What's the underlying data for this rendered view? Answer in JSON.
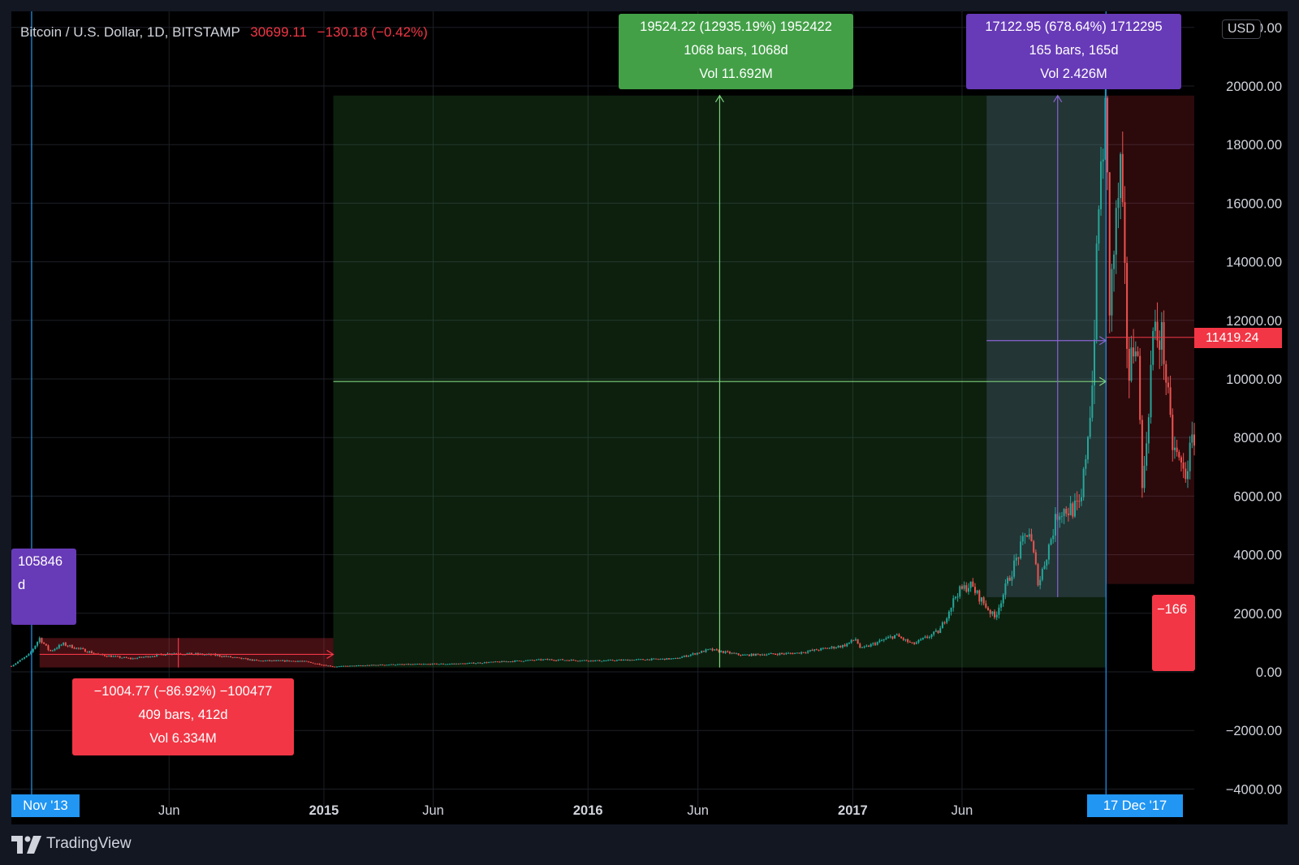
{
  "header": {
    "symbol": "Bitcoin / U.S. Dollar, 1D, BITSTAMP",
    "last_price": "30699.11",
    "change": "−130.18 (−0.42%)",
    "currency": "USD"
  },
  "colors": {
    "background": "#000000",
    "up": "#26a69a",
    "down": "#ef5350",
    "green_zone": "#43a047",
    "purple_zone": "#673ab7",
    "red_zone": "#f23645",
    "crosshair": "#2196f3"
  },
  "measurements": {
    "green": {
      "line1": "19524.22 (12935.19%) 1952422",
      "line2": "1068 bars, 1068d",
      "line3": "Vol 11.692M"
    },
    "purple": {
      "line1": "17122.95 (678.64%) 1712295",
      "line2": "165 bars, 165d",
      "line3": "Vol 2.426M"
    },
    "red_main": {
      "line1": "−1004.77 (−86.92%) −100477",
      "line2": "409 bars, 412d",
      "line3": "Vol 6.334M"
    },
    "purple_left": {
      "line1": "105846",
      "line2": "d"
    },
    "red_right": {
      "line1": "−166"
    }
  },
  "price_label": "11419.24",
  "crosshair_labels": {
    "left": "Nov '13",
    "right": "17 Dec '17"
  },
  "branding": {
    "name": "TradingView"
  },
  "chart_data": {
    "type": "candlestick",
    "title": "",
    "y_axis": {
      "ticks": [
        22000,
        20000,
        18000,
        16000,
        14000,
        12000,
        10000,
        8000,
        6000,
        4000,
        2000,
        0,
        -2000,
        -4000
      ],
      "tick_labels": [
        "22000.00",
        "20000.00",
        "18000.00",
        "16000.00",
        "14000.00",
        "12000.00",
        "10000.00",
        "8000.00",
        "6000.00",
        "4000.00",
        "2000.00",
        "0.00",
        "−2000.00",
        "−4000.00"
      ],
      "ylim": [
        -4000,
        22000
      ]
    },
    "x_axis": {
      "tick_labels": [
        {
          "label": "Jun",
          "date": "2014-06-01",
          "bold": false
        },
        {
          "label": "2015",
          "date": "2015-01-01",
          "bold": true
        },
        {
          "label": "Jun",
          "date": "2015-06-01",
          "bold": false
        },
        {
          "label": "2016",
          "date": "2016-01-01",
          "bold": true
        },
        {
          "label": "Jun",
          "date": "2016-06-01",
          "bold": false
        },
        {
          "label": "2017",
          "date": "2017-01-01",
          "bold": true
        },
        {
          "label": "Jun",
          "date": "2017-06-01",
          "bold": false
        }
      ],
      "xlim": [
        "2013-10-26",
        "2018-04-18"
      ]
    },
    "price_path": [
      {
        "date": "2013-10-26",
        "price": 200
      },
      {
        "date": "2013-11-20",
        "price": 600
      },
      {
        "date": "2013-12-04",
        "price": 1150
      },
      {
        "date": "2013-12-18",
        "price": 700
      },
      {
        "date": "2014-01-05",
        "price": 950
      },
      {
        "date": "2014-02-25",
        "price": 580
      },
      {
        "date": "2014-04-10",
        "price": 450
      },
      {
        "date": "2014-06-05",
        "price": 640
      },
      {
        "date": "2014-08-01",
        "price": 580
      },
      {
        "date": "2014-10-01",
        "price": 380
      },
      {
        "date": "2014-12-01",
        "price": 370
      },
      {
        "date": "2015-01-14",
        "price": 180
      },
      {
        "date": "2015-04-01",
        "price": 250
      },
      {
        "date": "2015-07-10",
        "price": 280
      },
      {
        "date": "2015-11-04",
        "price": 420
      },
      {
        "date": "2016-01-15",
        "price": 380
      },
      {
        "date": "2016-05-01",
        "price": 450
      },
      {
        "date": "2016-06-17",
        "price": 760
      },
      {
        "date": "2016-08-01",
        "price": 570
      },
      {
        "date": "2016-10-15",
        "price": 640
      },
      {
        "date": "2016-12-20",
        "price": 900
      },
      {
        "date": "2017-01-05",
        "price": 1120
      },
      {
        "date": "2017-01-12",
        "price": 780
      },
      {
        "date": "2017-03-01",
        "price": 1250
      },
      {
        "date": "2017-03-25",
        "price": 940
      },
      {
        "date": "2017-05-01",
        "price": 1400
      },
      {
        "date": "2017-05-25",
        "price": 2700
      },
      {
        "date": "2017-06-12",
        "price": 2980
      },
      {
        "date": "2017-07-16",
        "price": 1850
      },
      {
        "date": "2017-08-05",
        "price": 3200
      },
      {
        "date": "2017-09-01",
        "price": 4900
      },
      {
        "date": "2017-09-15",
        "price": 3000
      },
      {
        "date": "2017-10-12",
        "price": 5500
      },
      {
        "date": "2017-11-12",
        "price": 5600
      },
      {
        "date": "2017-11-28",
        "price": 9800
      },
      {
        "date": "2017-12-08",
        "price": 16500
      },
      {
        "date": "2017-12-17",
        "price": 19200
      },
      {
        "date": "2017-12-22",
        "price": 12500
      },
      {
        "date": "2018-01-06",
        "price": 17100
      },
      {
        "date": "2018-01-17",
        "price": 10000
      },
      {
        "date": "2018-01-28",
        "price": 11800
      },
      {
        "date": "2018-02-06",
        "price": 6000
      },
      {
        "date": "2018-02-20",
        "price": 11500
      },
      {
        "date": "2018-03-05",
        "price": 11400
      },
      {
        "date": "2018-03-18",
        "price": 7800
      },
      {
        "date": "2018-04-05",
        "price": 6700
      },
      {
        "date": "2018-04-18",
        "price": 8100
      }
    ],
    "ranges": [
      {
        "name": "red_main",
        "from": "2013-12-04",
        "to": "2015-01-14",
        "p_from": 1155,
        "p_to": 150
      },
      {
        "name": "green",
        "from": "2015-01-14",
        "to": "2017-12-17",
        "p_from": 150,
        "p_to": 19674
      },
      {
        "name": "purple",
        "from": "2017-07-05",
        "to": "2017-12-17",
        "p_from": 2551,
        "p_to": 19674
      },
      {
        "name": "red_right",
        "from": "2017-12-17",
        "to": "2018-04-18",
        "p_from": 19674,
        "p_to": 3000
      }
    ],
    "current_price": 11419.24,
    "grid": true
  }
}
